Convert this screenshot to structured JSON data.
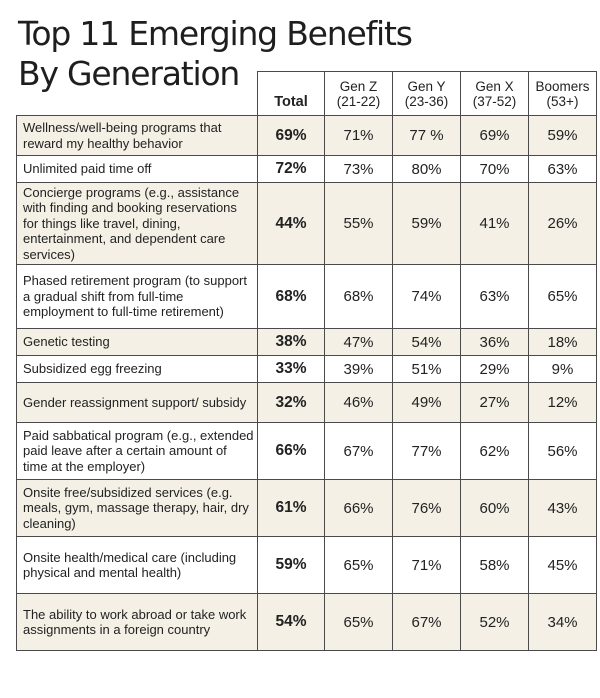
{
  "chart_data": {
    "type": "table",
    "title_line1": "Top 11 Emerging Benefits",
    "title_line2": "By Generation",
    "columns": [
      {
        "name": "Total",
        "range": ""
      },
      {
        "name": "Gen Z",
        "range": "(21-22)"
      },
      {
        "name": "Gen Y",
        "range": "(23-36)"
      },
      {
        "name": "Gen X",
        "range": "(37-52)"
      },
      {
        "name": "Boomers",
        "range": "(53+)"
      }
    ],
    "rows": [
      {
        "label": "Wellness/well-being programs that reward my healthy behavior",
        "values": [
          "69%",
          "71%",
          "77 %",
          "69%",
          "59%"
        ]
      },
      {
        "label": "Unlimited paid time off",
        "values": [
          "72%",
          "73%",
          "80%",
          "70%",
          "63%"
        ]
      },
      {
        "label": "Concierge programs (e.g., assistance with finding and booking reservations for things like travel, dining, entertainment, and dependent care services)",
        "values": [
          "44%",
          "55%",
          "59%",
          "41%",
          "26%"
        ]
      },
      {
        "label": "Phased retirement program (to support a gradual shift from full-time employment to full-time retirement)",
        "values": [
          "68%",
          "68%",
          "74%",
          "63%",
          "65%"
        ]
      },
      {
        "label": "Genetic testing",
        "values": [
          "38%",
          "47%",
          "54%",
          "36%",
          "18%"
        ]
      },
      {
        "label": "Subsidized egg freezing",
        "values": [
          "33%",
          "39%",
          "51%",
          "29%",
          "9%"
        ]
      },
      {
        "label": "Gender reassignment support/ subsidy",
        "values": [
          "32%",
          "46%",
          "49%",
          "27%",
          "12%"
        ]
      },
      {
        "label": "Paid sabbatical program (e.g., extended paid leave after a certain amount of time at the employer)",
        "values": [
          "66%",
          "67%",
          "77%",
          "62%",
          "56%"
        ]
      },
      {
        "label": "Onsite free/subsidized services (e.g. meals, gym, massage therapy, hair, dry cleaning)",
        "values": [
          "61%",
          "66%",
          "76%",
          "60%",
          "43%"
        ]
      },
      {
        "label": "Onsite health/medical care (including physical and mental health)",
        "values": [
          "59%",
          "65%",
          "71%",
          "58%",
          "45%"
        ]
      },
      {
        "label": "The ability to work abroad or take work assignments in a foreign country",
        "values": [
          "54%",
          "65%",
          "67%",
          "52%",
          "34%"
        ]
      }
    ],
    "colors": {
      "row_shade": "#f4f0e6",
      "row_plain": "#ffffff",
      "border": "#4a4a4a"
    }
  }
}
